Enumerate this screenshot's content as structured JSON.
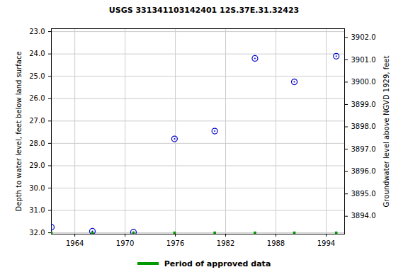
{
  "chart_data": {
    "type": "scatter",
    "title": "USGS 331341103142401 12S.37E.31.32423",
    "y_label": "Depth to water level, feet below land surface",
    "y2_label": "Groundwater level above NGVD 1929, feet",
    "xlim": [
      1961.2,
      1996.2
    ],
    "xticks": [
      1964,
      1970,
      1976,
      1982,
      1988,
      1994
    ],
    "ylim": [
      32.06,
      22.87
    ],
    "yticks": [
      {
        "value": 23,
        "label": "23.0"
      },
      {
        "value": 24,
        "label": "24.0"
      },
      {
        "value": 25,
        "label": "25.0"
      },
      {
        "value": 26,
        "label": "26.0"
      },
      {
        "value": 27,
        "label": "27.0"
      },
      {
        "value": 28,
        "label": "28.0"
      },
      {
        "value": 29,
        "label": "29.0"
      },
      {
        "value": 30,
        "label": "30.0"
      },
      {
        "value": 31,
        "label": "31.0"
      },
      {
        "value": 32,
        "label": "32.0"
      }
    ],
    "y2lim": [
      3893.2,
      3902.39
    ],
    "y2ticks": [
      {
        "value": 3894,
        "label": "3894.0"
      },
      {
        "value": 3895,
        "label": "3895.0"
      },
      {
        "value": 3896,
        "label": "3896.0"
      },
      {
        "value": 3897,
        "label": "3897.0"
      },
      {
        "value": 3898,
        "label": "3898.0"
      },
      {
        "value": 3899,
        "label": "3899.0"
      },
      {
        "value": 3900,
        "label": "3900.0"
      },
      {
        "value": 3901,
        "label": "3901.0"
      },
      {
        "value": 3902,
        "label": "3902.0"
      }
    ],
    "grid": true,
    "legend": "bottom",
    "series": [
      {
        "color": "#0000cc",
        "marker": "circle",
        "x": [
          1961.2,
          1966.1,
          1971.0,
          1975.9,
          1980.7,
          1985.5,
          1990.2,
          1995.2
        ],
        "values": [
          31.75,
          31.93,
          31.97,
          27.8,
          27.45,
          24.2,
          25.25,
          24.1
        ]
      },
      {
        "name": "Period of approved data",
        "color": "#009900",
        "marker": "square",
        "x": [
          1961.2,
          1966.1,
          1971.0,
          1975.9,
          1980.7,
          1985.5,
          1990.2,
          1995.2
        ],
        "values": [
          32.0,
          32.0,
          32.0,
          32.0,
          32.0,
          32.0,
          32.0,
          32.0
        ]
      }
    ]
  }
}
